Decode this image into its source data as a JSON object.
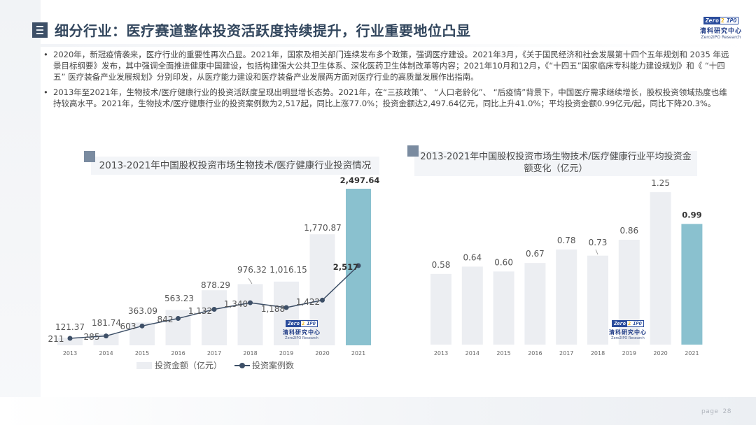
{
  "header": {
    "title": "细分行业：医疗赛道整体投资活跃度持续提升，行业重要地位凸显",
    "logo": {
      "badge_left": "Zero",
      "badge_mid": "2",
      "badge_right": "IPO",
      "cn": "清科研究中心",
      "en": "Zero2IPO Research"
    }
  },
  "bullets": [
    "2020年，新冠疫情袭来，医疗行业的重要性再次凸显。2021年，国家及相关部门连续发布多个政策，强调医疗建设。2021年3月，《关于国民经济和社会发展第十四个五年规划和 2035 年远景目标纲要》发布，其中强调全面推进健康中国建设，包括构建强大公共卫生体系、深化医药卫生体制改革等内容；2021年10月和12月，《“十四五”国家临床专科能力建设规划》和《 “十四五” 医疗装备产业发展规划》分别印发，从医疗能力建设和医疗装备产业发展两方面对医疗行业的高质量发展作出指南。",
    "2013年至2021年，生物技术/医疗健康行业的投资活跃度呈现出明显增长态势。2021年，在“三孩政策”、 “人口老龄化”、 “后疫情”背景下，中国医疗需求继续增长，股权投资领域热度也维持较高水平。2021年，生物技术/医疗健康行业的投资案例数为2,517起，同比上涨77.0%；投资金额达2,497.64亿元，同比上升41.0%；平均投资金额0.99亿元/起，同比下降20.3%。"
  ],
  "bullet_symbol": "•",
  "colors": {
    "bar_default": "#eceef2",
    "bar_highlight": "#8ac1cf",
    "line": "#3d4f67",
    "title_accent": "#33475e"
  },
  "legend": {
    "bar_label": "投资金额（亿元）",
    "line_label": "投资案例数"
  },
  "footer": {
    "page_label": "page",
    "page_number": "28"
  },
  "chart_data": [
    {
      "type": "bar+line",
      "title": "2013-2021年中国股权投资市场生物技术/医疗健康行业投资情况",
      "categories": [
        "2013",
        "2014",
        "2015",
        "2016",
        "2017",
        "2018",
        "2019",
        "2020",
        "2021"
      ],
      "series": [
        {
          "name": "投资金额（亿元）",
          "type": "bar",
          "values": [
            121.37,
            181.74,
            363.09,
            563.23,
            878.29,
            976.32,
            1016.15,
            1770.87,
            2497.64
          ],
          "labels": [
            "121.37",
            "181.74",
            "363.09",
            "563.23",
            "878.29",
            "976.32",
            "1,016.15",
            "1,770.87",
            "2,497.64"
          ]
        },
        {
          "name": "投资案例数",
          "type": "line",
          "values": [
            211,
            285,
            603,
            842,
            1132,
            1340,
            1188,
            1422,
            2517
          ],
          "labels": [
            "211",
            "285",
            "603",
            "842",
            "1,132",
            "1,340",
            "1,188",
            "1,422",
            "2,517"
          ]
        }
      ],
      "highlight_index": 8,
      "legend_position": "bottom",
      "grid": false
    },
    {
      "type": "bar",
      "title": "2013-2021年中国股权投资市场生物技术/医疗健康行业平均投资金额变化（亿元）",
      "categories": [
        "2013",
        "2014",
        "2015",
        "2016",
        "2017",
        "2018",
        "2019",
        "2020",
        "2021"
      ],
      "values": [
        0.58,
        0.64,
        0.6,
        0.67,
        0.78,
        0.73,
        0.86,
        1.25,
        0.99
      ],
      "labels": [
        "0.58",
        "0.64",
        "0.60",
        "0.67",
        "0.78",
        "0.73",
        "0.86",
        "1.25",
        "0.99"
      ],
      "highlight_index": 8,
      "grid": false
    }
  ]
}
